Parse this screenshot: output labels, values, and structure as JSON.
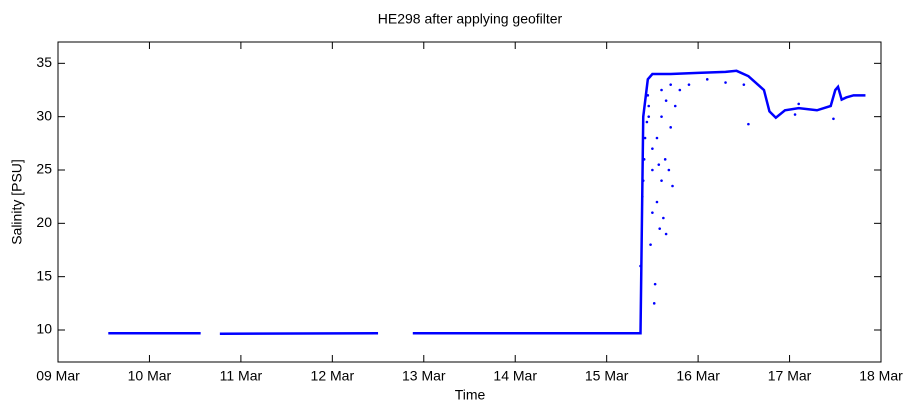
{
  "chart_data": {
    "type": "scatter",
    "title": "HE298 after applying geofilter",
    "x_label": "Time",
    "y_label": "Salinity [PSU]",
    "xlim": [
      9,
      18
    ],
    "xticks": [
      {
        "value": 9,
        "label": "09 Mar"
      },
      {
        "value": 10,
        "label": "10 Mar"
      },
      {
        "value": 11,
        "label": "11 Mar"
      },
      {
        "value": 12,
        "label": "12 Mar"
      },
      {
        "value": 13,
        "label": "13 Mar"
      },
      {
        "value": 14,
        "label": "14 Mar"
      },
      {
        "value": 15,
        "label": "15 Mar"
      },
      {
        "value": 16,
        "label": "16 Mar"
      },
      {
        "value": 17,
        "label": "17 Mar"
      },
      {
        "value": 18,
        "label": "18 Mar"
      }
    ],
    "ylim": [
      7,
      37
    ],
    "yticks": [
      10,
      15,
      20,
      25,
      30,
      35
    ],
    "series": [
      {
        "color": "#0000ff",
        "line": true,
        "x": [
          9.55,
          10.56,
          null,
          10.77,
          12.5,
          null,
          12.88,
          15.37,
          15.4,
          15.45,
          15.5,
          15.7,
          16.0,
          16.3,
          16.42,
          16.55,
          16.72,
          16.78,
          16.85,
          16.95,
          17.1,
          17.3,
          17.45,
          17.5,
          17.53,
          17.57,
          17.62,
          17.7,
          17.83
        ],
        "values": [
          9.7,
          9.7,
          null,
          9.65,
          9.7,
          null,
          9.7,
          9.7,
          30,
          33.5,
          34.0,
          34.0,
          34.1,
          34.2,
          34.3,
          33.8,
          32.5,
          30.5,
          29.9,
          30.6,
          30.8,
          30.6,
          31.0,
          32.5,
          32.8,
          31.6,
          31.8,
          32.0,
          32.0
        ]
      },
      {
        "color": "#0000ff",
        "line": false,
        "x": [
          15.37,
          15.39,
          15.4,
          15.41,
          15.42,
          15.44,
          15.46,
          15.48,
          15.5,
          15.52,
          15.53,
          15.5,
          15.55,
          15.57,
          15.58,
          15.6,
          15.62,
          15.64,
          15.65,
          15.68,
          15.7,
          15.72,
          15.75,
          15.8,
          15.5,
          15.46,
          15.55,
          15.6,
          15.65,
          15.9,
          16.1,
          16.3,
          16.5,
          16.55,
          17.06,
          17.48,
          17.1,
          15.45,
          15.6,
          15.7
        ],
        "values": [
          16,
          22.5,
          24,
          26,
          28,
          29.5,
          31,
          18,
          21,
          12.5,
          14.3,
          25,
          22,
          25.5,
          19.5,
          24,
          20.5,
          26,
          19,
          25,
          29,
          23.5,
          31,
          32.5,
          27,
          30,
          28,
          30,
          31.5,
          33,
          33.5,
          33.2,
          33,
          29.3,
          30.2,
          29.8,
          31.2,
          32,
          32.5,
          33
        ]
      }
    ]
  }
}
